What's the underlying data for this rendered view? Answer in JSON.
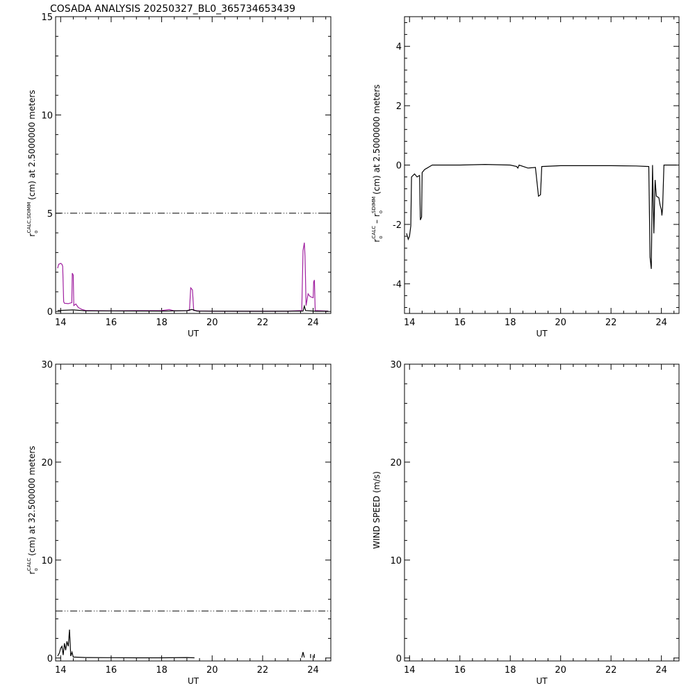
{
  "page": {
    "title": "COSADA ANALYSIS 20250327_BL0_365734653439"
  },
  "colors": {
    "background": "#ffffff",
    "axes": "#000000",
    "series_black": "#000000",
    "series_magenta": "#a020a0"
  },
  "chart_data": [
    {
      "id": "top-left",
      "type": "line",
      "title": "COSADA ANALYSIS 20250327_BL0_365734653439",
      "xlabel": "UT",
      "ylabel": {
        "main": "r",
        "sub": "o",
        "sup": "CALC,SDIMM",
        "rest": "(cm)  at  2.5000000 meters"
      },
      "xlim": [
        13.8,
        24.7
      ],
      "ylim": [
        -0.1,
        15
      ],
      "xticks": [
        14,
        16,
        18,
        20,
        22,
        24
      ],
      "yticks": [
        0,
        5,
        10,
        15
      ],
      "hlines": [
        {
          "y": 5,
          "style": "dashdot"
        }
      ],
      "series": [
        {
          "color": "#a020a0",
          "points": [
            [
              13.88,
              2.2
            ],
            [
              13.92,
              2.4
            ],
            [
              14.0,
              2.45
            ],
            [
              14.05,
              2.4
            ],
            [
              14.08,
              2.3
            ],
            [
              14.12,
              0.5
            ],
            [
              14.15,
              0.42
            ],
            [
              14.3,
              0.4
            ],
            [
              14.44,
              0.45
            ],
            [
              14.46,
              1.95
            ],
            [
              14.5,
              1.85
            ],
            [
              14.52,
              0.3
            ],
            [
              14.6,
              0.38
            ],
            [
              14.7,
              0.2
            ],
            [
              14.85,
              0.1
            ],
            [
              15.0,
              0.05
            ],
            [
              16,
              0.03
            ],
            [
              17,
              0.04
            ],
            [
              18.0,
              0.05
            ],
            [
              18.3,
              0.1
            ],
            [
              18.45,
              0.05
            ],
            [
              18.6,
              0.03
            ],
            [
              18.9,
              0.04
            ],
            [
              19.1,
              0.05
            ],
            [
              19.15,
              1.2
            ],
            [
              19.22,
              1.1
            ],
            [
              19.27,
              0.05
            ],
            [
              19.5,
              0.03
            ],
            [
              20,
              0.02
            ],
            [
              21,
              0.02
            ],
            [
              22,
              0.02
            ],
            [
              23.0,
              0.02
            ],
            [
              23.55,
              0.05
            ],
            [
              23.6,
              3.1
            ],
            [
              23.65,
              3.5
            ],
            [
              23.68,
              2.8
            ],
            [
              23.72,
              0.3
            ],
            [
              23.8,
              0.9
            ],
            [
              23.85,
              0.8
            ],
            [
              23.9,
              0.75
            ],
            [
              24.0,
              0.7
            ],
            [
              24.02,
              1.5
            ],
            [
              24.05,
              1.6
            ],
            [
              24.08,
              0.05
            ],
            [
              24.6,
              0.02
            ]
          ]
        },
        {
          "color": "#000000",
          "points": [
            [
              13.88,
              0.05
            ],
            [
              14.5,
              0.08
            ],
            [
              15,
              0.03
            ],
            [
              18,
              0.02
            ],
            [
              19,
              0.04
            ],
            [
              19.2,
              0.1
            ],
            [
              19.4,
              0.02
            ],
            [
              22,
              0.01
            ],
            [
              23.6,
              0.02
            ],
            [
              23.65,
              0.28
            ],
            [
              23.7,
              0.05
            ],
            [
              24.1,
              0.01
            ],
            [
              24.6,
              0.01
            ]
          ]
        }
      ]
    },
    {
      "id": "top-right",
      "type": "line",
      "title": "",
      "xlabel": "UT",
      "ylabel": {
        "main": "r",
        "sub": "o",
        "sup": "CALC",
        "mid": "– r",
        "sub2": "o",
        "sup2": "SDIMM",
        "rest": "(cm) at 2.5000000 meters"
      },
      "xlim": [
        13.8,
        24.7
      ],
      "ylim": [
        -5,
        5
      ],
      "xticks": [
        14,
        16,
        18,
        20,
        22,
        24
      ],
      "yticks": [
        -4,
        -2,
        0,
        2,
        4
      ],
      "series": [
        {
          "color": "#000000",
          "points": [
            [
              13.88,
              -2.3
            ],
            [
              13.95,
              -2.5
            ],
            [
              14.0,
              -2.4
            ],
            [
              14.05,
              -2.05
            ],
            [
              14.08,
              -0.4
            ],
            [
              14.2,
              -0.3
            ],
            [
              14.3,
              -0.4
            ],
            [
              14.4,
              -0.35
            ],
            [
              14.43,
              -1.85
            ],
            [
              14.48,
              -1.75
            ],
            [
              14.5,
              -0.25
            ],
            [
              14.6,
              -0.15
            ],
            [
              14.7,
              -0.1
            ],
            [
              14.8,
              -0.05
            ],
            [
              14.9,
              0.0
            ],
            [
              16,
              0.0
            ],
            [
              17,
              0.02
            ],
            [
              18.0,
              0.0
            ],
            [
              18.25,
              -0.05
            ],
            [
              18.3,
              -0.1
            ],
            [
              18.35,
              0.0
            ],
            [
              18.7,
              -0.1
            ],
            [
              19.0,
              -0.08
            ],
            [
              19.12,
              -1.05
            ],
            [
              19.2,
              -1.0
            ],
            [
              19.25,
              -0.05
            ],
            [
              20,
              -0.02
            ],
            [
              22,
              -0.02
            ],
            [
              23.0,
              -0.03
            ],
            [
              23.5,
              -0.05
            ],
            [
              23.55,
              -3.1
            ],
            [
              23.6,
              -3.5
            ],
            [
              23.65,
              0.0
            ],
            [
              23.7,
              -2.3
            ],
            [
              23.75,
              -0.5
            ],
            [
              23.8,
              -1.05
            ],
            [
              23.9,
              -1.1
            ],
            [
              23.95,
              -1.35
            ],
            [
              24.0,
              -1.5
            ],
            [
              24.02,
              -1.7
            ],
            [
              24.05,
              -1.45
            ],
            [
              24.1,
              0.0
            ],
            [
              24.6,
              0.0
            ]
          ]
        }
      ]
    },
    {
      "id": "bottom-left",
      "type": "line",
      "title": "",
      "xlabel": "UT",
      "ylabel": {
        "main": "r",
        "sub": "o",
        "sup": "CALC",
        "rest": "(cm) at 32.500000 meters"
      },
      "xlim": [
        13.8,
        24.7
      ],
      "ylim": [
        -0.3,
        30
      ],
      "xticks": [
        14,
        16,
        18,
        20,
        22,
        24
      ],
      "yticks": [
        0,
        10,
        20,
        30
      ],
      "hlines": [
        {
          "y": 4.8,
          "style": "dashdot"
        }
      ],
      "series": [
        {
          "color": "#000000",
          "points": [
            [
              13.88,
              0.2
            ],
            [
              13.95,
              0.5
            ],
            [
              14.0,
              1.0
            ],
            [
              14.05,
              1.2
            ],
            [
              14.1,
              0.3
            ],
            [
              14.15,
              1.5
            ],
            [
              14.2,
              0.8
            ],
            [
              14.25,
              1.7
            ],
            [
              14.3,
              1.2
            ],
            [
              14.35,
              2.9
            ],
            [
              14.4,
              0.2
            ],
            [
              14.45,
              0.6
            ],
            [
              14.5,
              0.1
            ],
            [
              15,
              0.05
            ],
            [
              16,
              0.03
            ],
            [
              17,
              0.02
            ],
            [
              18,
              0.02
            ],
            [
              19,
              0.05
            ],
            [
              19.3,
              0.02
            ]
          ]
        },
        {
          "color": "#000000",
          "points": [
            [
              23.55,
              0.05
            ],
            [
              23.6,
              0.6
            ],
            [
              23.65,
              0.05
            ]
          ]
        },
        {
          "color": "#000000",
          "points": [
            [
              23.9,
              0.0
            ],
            [
              23.9,
              0.4
            ]
          ]
        },
        {
          "color": "#000000",
          "points": [
            [
              24.05,
              0.0
            ],
            [
              24.05,
              0.4
            ]
          ]
        }
      ]
    },
    {
      "id": "bottom-right",
      "type": "line",
      "title": "",
      "xlabel": "UT",
      "ylabel": {
        "main": "WIND SPEED (m/s)"
      },
      "xlim": [
        13.8,
        24.7
      ],
      "ylim": [
        -0.3,
        30
      ],
      "xticks": [
        14,
        16,
        18,
        20,
        22,
        24
      ],
      "yticks": [
        0,
        10,
        20,
        30
      ],
      "series": []
    }
  ]
}
